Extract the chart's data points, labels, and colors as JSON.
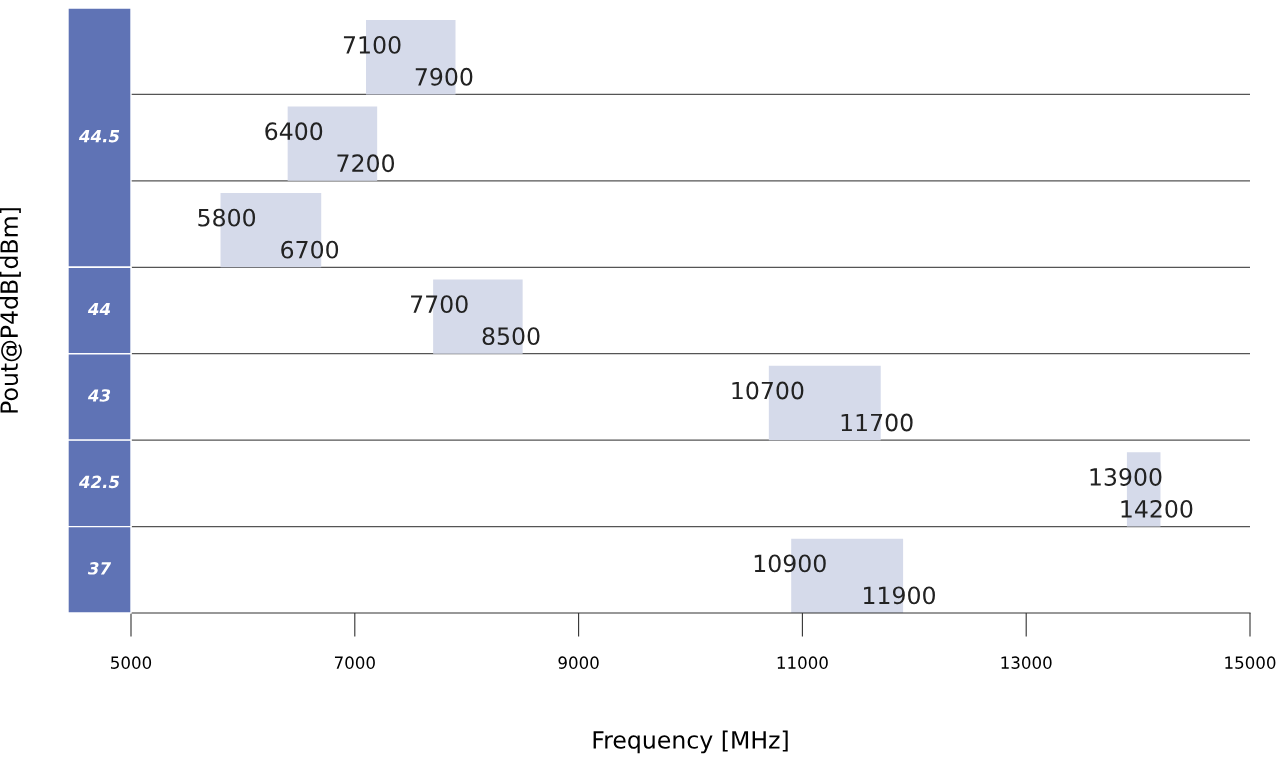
{
  "chart_data": {
    "type": "bar",
    "orientation": "horizontal",
    "categories": [
      null,
      "44.5",
      null,
      "44",
      "43",
      "42.5",
      "37"
    ],
    "base": [
      7100,
      6400,
      5800,
      7700,
      10700,
      13900,
      10900
    ],
    "values": [
      800,
      800,
      900,
      800,
      1000,
      300,
      1000
    ],
    "color": "#d5daea",
    "grid": "y",
    "annotations": [
      {
        "text": "7100",
        "x": 7100
      },
      {
        "text": "7900",
        "x": 7900
      },
      {
        "text": "6400",
        "x": 6400
      },
      {
        "text": "7200",
        "x": 7200
      },
      {
        "text": "5800",
        "x": 5800
      },
      {
        "text": "6700",
        "x": 6700
      },
      {
        "text": "7700",
        "x": 7700,
        "y": "44"
      },
      {
        "text": "8500",
        "x": 8500,
        "y": "44"
      },
      {
        "text": "10700",
        "x": 10700,
        "y": "43"
      },
      {
        "text": "11700",
        "x": 11700,
        "y": "43"
      },
      {
        "text": "13900",
        "x": 13900,
        "y": "42.5"
      },
      {
        "text": "14200",
        "x": 14200,
        "y": "42.5"
      },
      {
        "text": "10900",
        "x": 10900,
        "y": "37"
      },
      {
        "text": "11900",
        "x": 11900,
        "y": "37"
      }
    ],
    "xlim": [
      5000,
      15000
    ],
    "xticks": [
      5000,
      7000,
      9000,
      11000,
      13000,
      15000
    ],
    "xlabel": "Frequency [MHz]",
    "ylabel": "Pout@P4dB[dBm]"
  }
}
